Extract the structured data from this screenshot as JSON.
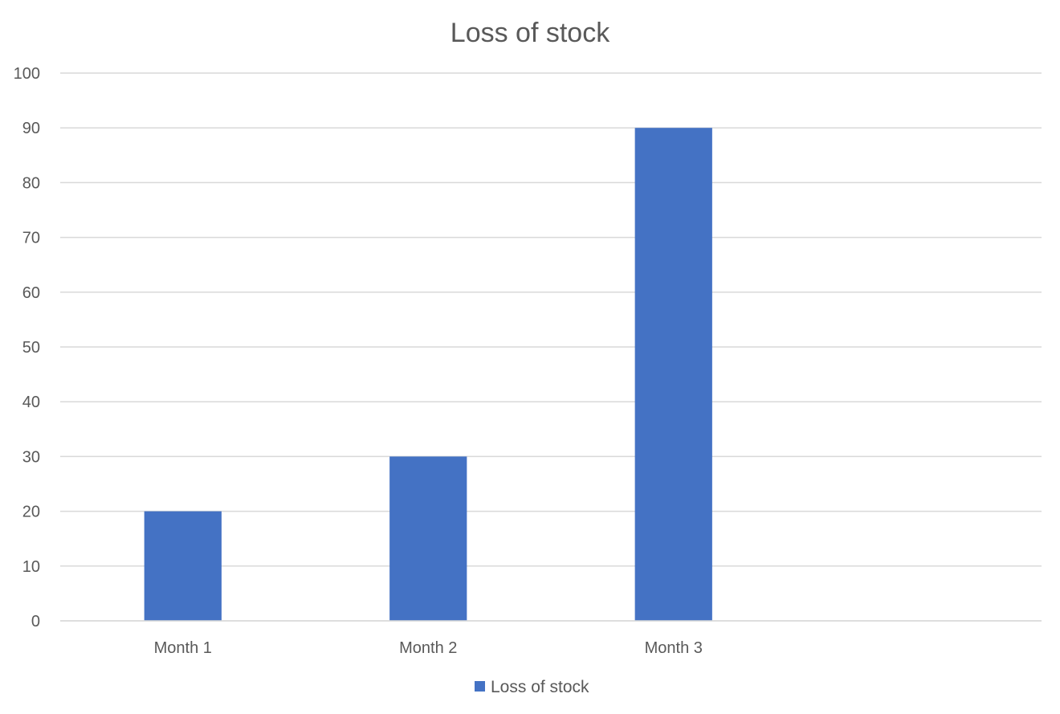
{
  "chart_data": {
    "type": "bar",
    "title": "Loss of stock",
    "categories": [
      "Month 1",
      "Month 2",
      "Month 3",
      ""
    ],
    "series": [
      {
        "name": "Loss of stock",
        "values": [
          20,
          30,
          90,
          null
        ],
        "color": "#4472C4"
      }
    ],
    "ylim": [
      0,
      100
    ],
    "yticks": [
      0,
      10,
      20,
      30,
      40,
      50,
      60,
      70,
      80,
      90,
      100
    ],
    "grid": true,
    "legend_position": "bottom"
  }
}
